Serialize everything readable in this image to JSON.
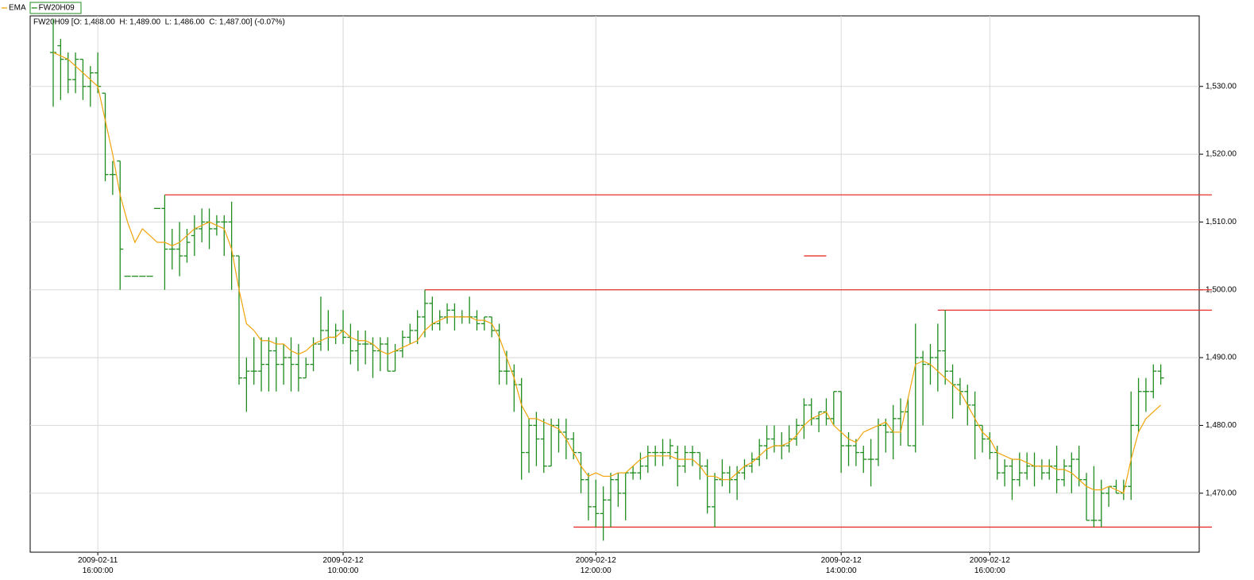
{
  "chart_data": {
    "type": "ohlc",
    "info": "FW20H09 [O: 1,488.00  H: 1,489.00  L: 1,486.00  C: 1,487.00] (-0.07%)",
    "categories": [
      null,
      null,
      null,
      null,
      null,
      null,
      "2009-02-11 16:00:00",
      null,
      null,
      null,
      null,
      null,
      null,
      null,
      null,
      null,
      null,
      null,
      null,
      null,
      null,
      null,
      null,
      null,
      null,
      null,
      null,
      null,
      null,
      null,
      null,
      null,
      null,
      null,
      null,
      null,
      null,
      null,
      null,
      "2009-02-12 10:00:00",
      null,
      null,
      null,
      null,
      null,
      null,
      null,
      null,
      null,
      null,
      null,
      null,
      null,
      null,
      null,
      null,
      null,
      null,
      null,
      null,
      null,
      null,
      null,
      null,
      null,
      null,
      null,
      null,
      null,
      null,
      null,
      null,
      null,
      "2009-02-12 12:00:00",
      null,
      null,
      null,
      null,
      null,
      null,
      null,
      null,
      null,
      null,
      null,
      null,
      null,
      null,
      null,
      null,
      null,
      null,
      null,
      null,
      null,
      null,
      null,
      null,
      null,
      null,
      null,
      null,
      null,
      null,
      null,
      null,
      "2009-02-12 14:00:00",
      null,
      null,
      null,
      null,
      null,
      null,
      null,
      null,
      null,
      null,
      null,
      null,
      null,
      null,
      null,
      null,
      null,
      null,
      null,
      "2009-02-12 16:00:00",
      null,
      null,
      null,
      null,
      null,
      null,
      null,
      null,
      null,
      null,
      null,
      null,
      null,
      null,
      null,
      null,
      null,
      null,
      null,
      null,
      null,
      null,
      null
    ],
    "series": [
      {
        "name": "EMA",
        "type": "line",
        "color": "#f0a30a",
        "values": [
          1535,
          1534.5,
          1534,
          1533,
          1532,
          1531,
          1530,
          1525,
          1520,
          1514,
          1510,
          1507,
          1509,
          1508,
          1507,
          1507,
          1506.5,
          1507,
          1508,
          1509,
          1509.5,
          1510,
          1509.5,
          1509,
          1506,
          1500,
          1495,
          1494,
          1492.5,
          1492.5,
          1492,
          1492,
          1491,
          1490.5,
          1491,
          1492,
          1492.5,
          1493,
          1493,
          1494,
          1493,
          1492.5,
          1492.5,
          1492,
          1491,
          1490.5,
          1491,
          1491.5,
          1492,
          1492.5,
          1494,
          1495,
          1495.5,
          1496,
          1496,
          1496,
          1496,
          1495.5,
          1495.5,
          1495,
          1493,
          1490,
          1487,
          1483,
          1481,
          1481,
          1480.5,
          1480,
          1479.5,
          1478,
          1476,
          1474,
          1472.5,
          1473,
          1472.5,
          1472.5,
          1473,
          1473,
          1474,
          1475,
          1475.5,
          1475.5,
          1475.5,
          1475.5,
          1475,
          1475,
          1475,
          1474,
          1472.5,
          1472.5,
          1472,
          1472,
          1473,
          1474,
          1474.5,
          1475.5,
          1476.5,
          1477,
          1477,
          1477.5,
          1478.5,
          1480,
          1481,
          1481.5,
          1482,
          1480,
          1479,
          1478,
          1477.5,
          1479,
          1479.5,
          1480,
          1480.5,
          1479,
          1479,
          1484,
          1489,
          1489.5,
          1489,
          1488,
          1487,
          1486,
          1485,
          1483,
          1481,
          1479,
          1478,
          1476,
          1475.5,
          1475,
          1475,
          1474.5,
          1474,
          1474,
          1474,
          1473.5,
          1473.5,
          1473,
          1472,
          1471,
          1470.5,
          1470.5,
          1471,
          1470.5,
          1470,
          1475,
          1479,
          1481,
          1482,
          1483
        ]
      },
      {
        "name": "FW20H09",
        "type": "ohlc",
        "color": "#1e8c1e",
        "open": [
          1535,
          1536,
          1534,
          1531,
          1534,
          1530,
          1532,
          1529,
          1517,
          1519,
          1502,
          1502,
          1502,
          1502,
          1512,
          1512,
          1506,
          1506,
          1505,
          1508,
          1509,
          1510,
          1509,
          1510,
          1510,
          1505,
          1487,
          1488,
          1488,
          1489,
          1491,
          1489,
          1490,
          1489,
          1487,
          1489,
          1492,
          1494,
          1493,
          1494,
          1493,
          1491,
          1492,
          1492,
          1491,
          1492,
          1488,
          1491,
          1493,
          1494,
          1496,
          1498,
          1495,
          1496,
          1497,
          1496,
          1496,
          1496,
          1495,
          1496,
          1494,
          1488,
          1488,
          1486,
          1476,
          1480,
          1478,
          1474,
          1480,
          1479,
          1478,
          1476,
          1472,
          1468,
          1467,
          1469,
          1472,
          1470,
          1473,
          1473,
          1474,
          1476,
          1476,
          1476,
          1476,
          1474,
          1476,
          1476,
          1474,
          1468,
          1472,
          1473,
          1472,
          1473,
          1474,
          1475,
          1477,
          1478,
          1477,
          1477,
          1478,
          1480,
          1483,
          1481,
          1482,
          1481,
          1485,
          1477,
          1477,
          1476,
          1475,
          1475,
          1480,
          1479,
          1481,
          1482,
          1477,
          1490,
          1489,
          1490,
          1491,
          1488,
          1486,
          1485,
          1483,
          1480,
          1478,
          1476,
          1473,
          1474,
          1472,
          1473,
          1474,
          1474,
          1473,
          1474,
          1472,
          1474,
          1475,
          1472,
          1466,
          1466,
          1470,
          1471,
          1470,
          1471,
          1480,
          1485,
          1485,
          1488
        ],
        "high": [
          1540,
          1537,
          1535,
          1535,
          1534,
          1533,
          1535,
          1529,
          1519,
          1519,
          1502,
          1502,
          1502,
          1502,
          1512,
          1514,
          1509,
          1510,
          1509,
          1511,
          1512,
          1512,
          1511,
          1511,
          1513,
          1505,
          1490,
          1493,
          1493,
          1493,
          1493,
          1492,
          1493,
          1492,
          1490,
          1493,
          1499,
          1497,
          1495,
          1497,
          1495,
          1494,
          1494,
          1493,
          1493,
          1493,
          1492,
          1494,
          1495,
          1497,
          1500,
          1499,
          1497,
          1498,
          1498,
          1497,
          1499,
          1497,
          1496,
          1496,
          1495,
          1491,
          1489,
          1487,
          1481,
          1482,
          1481,
          1481,
          1481,
          1481,
          1479,
          1476,
          1473,
          1472,
          1471,
          1473,
          1473,
          1473,
          1474,
          1476,
          1477,
          1477,
          1478,
          1478,
          1477,
          1477,
          1477,
          1476,
          1475,
          1473,
          1475,
          1474,
          1474,
          1475,
          1476,
          1478,
          1480,
          1480,
          1479,
          1480,
          1481,
          1484,
          1484,
          1482,
          1484,
          1485,
          1485,
          1479,
          1478,
          1477,
          1478,
          1481,
          1481,
          1483,
          1484,
          1484,
          1495,
          1491,
          1492,
          1495,
          1497,
          1489,
          1487,
          1486,
          1485,
          1480,
          1479,
          1477,
          1475,
          1475,
          1476,
          1476,
          1476,
          1475,
          1475,
          1477,
          1475,
          1476,
          1477,
          1473,
          1474,
          1472,
          1471,
          1472,
          1472,
          1485,
          1487,
          1487,
          1489,
          1489
        ],
        "low": [
          1527,
          1528,
          1529,
          1529,
          1528,
          1527,
          1529,
          1516,
          1514,
          1500,
          1502,
          1502,
          1502,
          1502,
          1512,
          1500,
          1503,
          1502,
          1504,
          1505,
          1507,
          1506,
          1508,
          1505,
          1500,
          1486,
          1482,
          1486,
          1485,
          1485,
          1485,
          1486,
          1485,
          1485,
          1487,
          1488,
          1491,
          1491,
          1492,
          1492,
          1489,
          1488,
          1489,
          1487,
          1488,
          1488,
          1488,
          1490,
          1492,
          1492,
          1493,
          1494,
          1494,
          1495,
          1494,
          1495,
          1495,
          1494,
          1494,
          1493,
          1486,
          1486,
          1482,
          1472,
          1473,
          1474,
          1473,
          1474,
          1476,
          1475,
          1475,
          1470,
          1466,
          1465,
          1463,
          1465,
          1468,
          1466,
          1472,
          1472,
          1473,
          1474,
          1474,
          1475,
          1471,
          1473,
          1474,
          1472,
          1467,
          1465,
          1471,
          1470,
          1469,
          1472,
          1473,
          1474,
          1475,
          1476,
          1475,
          1476,
          1477,
          1478,
          1480,
          1479,
          1480,
          1480,
          1473,
          1474,
          1474,
          1473,
          1471,
          1474,
          1476,
          1475,
          1477,
          1477,
          1476,
          1480,
          1486,
          1485,
          1486,
          1481,
          1483,
          1480,
          1475,
          1476,
          1475,
          1472,
          1471,
          1469,
          1471,
          1472,
          1471,
          1472,
          1472,
          1470,
          1471,
          1470,
          1471,
          1466,
          1465,
          1465,
          1468,
          1470,
          1469,
          1469,
          1479,
          1482,
          1484,
          1486
        ],
        "close": [
          1535,
          1534,
          1531,
          1534,
          1530,
          1532,
          1530,
          1517,
          1517,
          1506,
          1502,
          1502,
          1502,
          1502,
          1512,
          1506,
          1506,
          1505,
          1507,
          1509,
          1510,
          1509,
          1510,
          1510,
          1505,
          1487,
          1488,
          1488,
          1489,
          1491,
          1489,
          1490,
          1489,
          1487,
          1489,
          1492,
          1494,
          1493,
          1494,
          1493,
          1491,
          1492,
          1492,
          1491,
          1492,
          1488,
          1491,
          1493,
          1494,
          1496,
          1498,
          1495,
          1496,
          1497,
          1496,
          1496,
          1496,
          1495,
          1496,
          1494,
          1488,
          1488,
          1486,
          1476,
          1480,
          1478,
          1474,
          1480,
          1479,
          1478,
          1476,
          1472,
          1468,
          1467,
          1469,
          1472,
          1470,
          1473,
          1473,
          1474,
          1476,
          1476,
          1476,
          1477,
          1474,
          1476,
          1476,
          1474,
          1468,
          1472,
          1473,
          1472,
          1473,
          1474,
          1475,
          1477,
          1478,
          1477,
          1477,
          1478,
          1480,
          1483,
          1481,
          1482,
          1481,
          1485,
          1477,
          1477,
          1476,
          1475,
          1475,
          1480,
          1479,
          1481,
          1482,
          1477,
          1490,
          1489,
          1490,
          1491,
          1488,
          1486,
          1485,
          1483,
          1480,
          1478,
          1476,
          1473,
          1474,
          1472,
          1473,
          1474,
          1474,
          1473,
          1474,
          1472,
          1474,
          1475,
          1472,
          1466,
          1466,
          1470,
          1471,
          1470,
          1471,
          1480,
          1485,
          1485,
          1488,
          1487
        ]
      }
    ],
    "levels": [
      {
        "value": 1514,
        "start": 15
      },
      {
        "value": 1505,
        "start": 101,
        "end": 104
      },
      {
        "value": 1500,
        "start": 50
      },
      {
        "value": 1497,
        "start": 119
      },
      {
        "value": 1465,
        "start": 70
      }
    ],
    "levels_color": "#e8302a",
    "ylim": [
      1461.3,
      1540.4
    ],
    "yticks": [
      {
        "value": 1470,
        "label": "1,470.00"
      },
      {
        "value": 1480,
        "label": "1,480.00"
      },
      {
        "value": 1490,
        "label": "1,490.00"
      },
      {
        "value": 1500,
        "label": "1,500.00"
      },
      {
        "value": 1510,
        "label": "1,510.00"
      },
      {
        "value": 1520,
        "label": "1,520.00"
      },
      {
        "value": 1530,
        "label": "1,530.00"
      }
    ],
    "grid": true
  }
}
